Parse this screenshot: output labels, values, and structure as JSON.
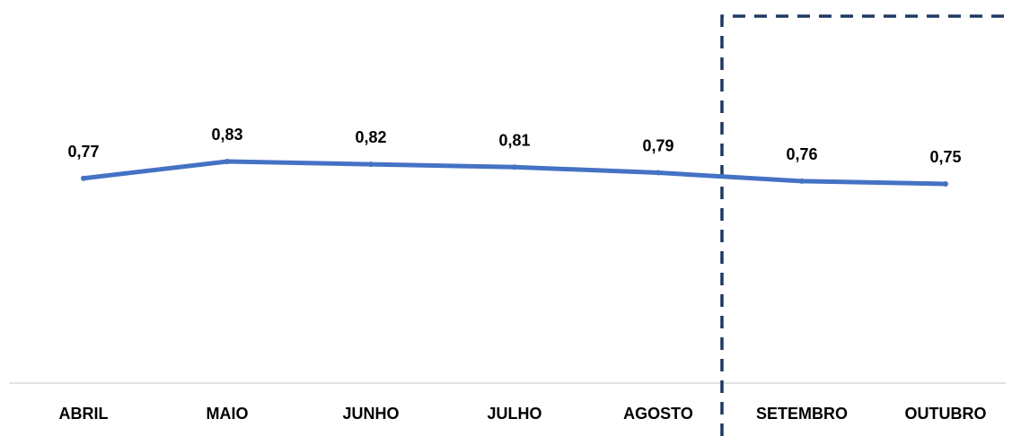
{
  "chart_data": {
    "type": "line",
    "categories": [
      "ABRIL",
      "MAIO",
      "JUNHO",
      "JULHO",
      "AGOSTO",
      "SETEMBRO",
      "OUTUBRO"
    ],
    "values": [
      0.77,
      0.83,
      0.82,
      0.81,
      0.79,
      0.76,
      0.75
    ],
    "value_labels": [
      "0,77",
      "0,83",
      "0,82",
      "0,81",
      "0,79",
      "0,76",
      "0,75"
    ],
    "title": "",
    "xlabel": "",
    "ylabel": "",
    "grid": false,
    "legend": "none",
    "series_color": "#4472C4",
    "highlight": {
      "style": "dashed-box",
      "color": "#1F3864",
      "from_category": "SETEMBRO",
      "to_category": "OUTUBRO"
    }
  }
}
